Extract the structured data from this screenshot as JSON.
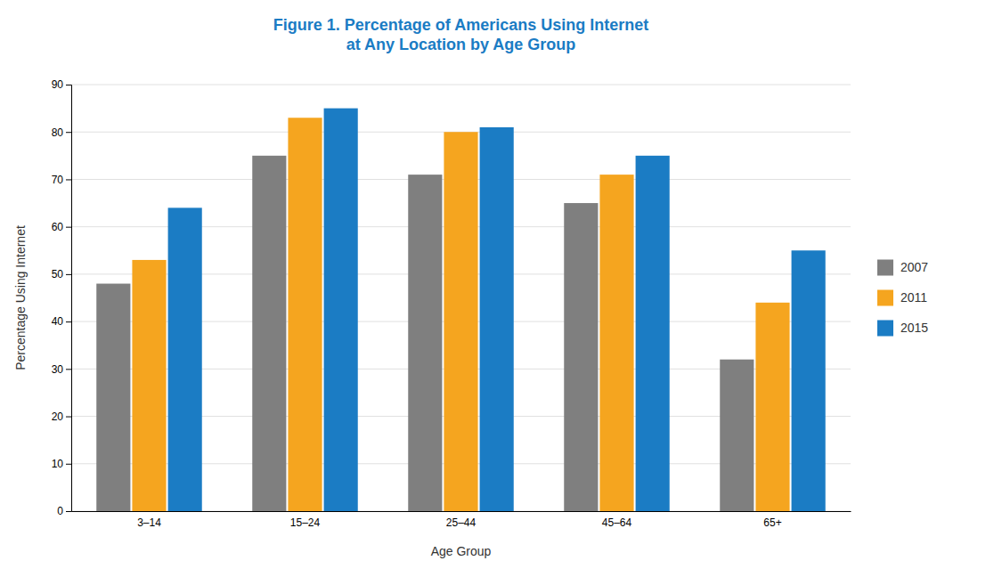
{
  "chart_data": {
    "type": "bar",
    "title": "Figure 1. Percentage of Americans Using Internet\nat Any Location by Age Group",
    "x_label": "Age Group",
    "y_label": "Percentage Using Internet",
    "categories": [
      "3–14",
      "15–24",
      "25–44",
      "45–64",
      "65+"
    ],
    "series": [
      {
        "name": "2007",
        "color": "#7f7f7f",
        "values": [
          48,
          75,
          71,
          65,
          32
        ]
      },
      {
        "name": "2011",
        "color": "#F5A51F",
        "values": [
          53,
          83,
          80,
          71,
          44
        ]
      },
      {
        "name": "2015",
        "color": "#1B7CC4",
        "values": [
          64,
          85,
          81,
          75,
          55
        ]
      }
    ],
    "ylim": [
      0,
      90
    ],
    "yticks": [
      0,
      10,
      20,
      30,
      40,
      50,
      60,
      70,
      80,
      90
    ],
    "grid": true,
    "legend": "right"
  }
}
